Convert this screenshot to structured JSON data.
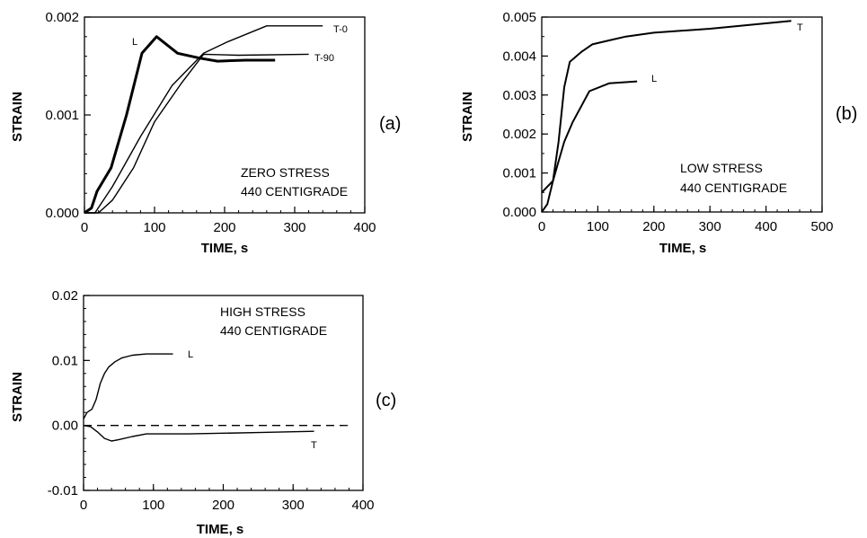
{
  "chart_data": [
    {
      "type": "line",
      "panel_label": "(a)",
      "xlabel": "TIME,  s",
      "ylabel": "STRAIN",
      "xlim": [
        0,
        400
      ],
      "ylim": [
        0,
        0.002
      ],
      "xticks": [
        "0",
        "100",
        "200",
        "300",
        "400"
      ],
      "yticks": [
        "0.000",
        "0.001",
        "0.002"
      ],
      "annotations": [
        "ZERO STRESS",
        "440 CENTIGRADE"
      ],
      "grid": false,
      "series": [
        {
          "name": "L",
          "style": "thick",
          "x": [
            0,
            10,
            18,
            38,
            60,
            82,
            103,
            133,
            165,
            190,
            230,
            272
          ],
          "y": [
            0,
            5e-05,
            0.00022,
            0.00046,
            0.001,
            0.00163,
            0.0018,
            0.00163,
            0.00158,
            0.00155,
            0.00156,
            0.00156
          ]
        },
        {
          "name": "T-0",
          "style": "thin",
          "x": [
            0,
            15,
            40,
            80,
            125,
            170,
            205,
            260,
            340
          ],
          "y": [
            0,
            0,
            0.00027,
            0.00078,
            0.0013,
            0.00163,
            0.00175,
            0.00191,
            0.00191
          ]
        },
        {
          "name": "T-90",
          "style": "thin",
          "x": [
            0,
            20,
            40,
            70,
            100,
            138,
            170,
            220,
            320
          ],
          "y": [
            0,
            0,
            0.00013,
            0.00046,
            0.00093,
            0.00132,
            0.00162,
            0.00161,
            0.00162
          ]
        }
      ]
    },
    {
      "type": "line",
      "panel_label": "(b)",
      "xlabel": "TIME,  s",
      "ylabel": "STRAIN",
      "xlim": [
        0,
        500
      ],
      "ylim": [
        0,
        0.005
      ],
      "xticks": [
        "0",
        "100",
        "200",
        "300",
        "400",
        "500"
      ],
      "yticks": [
        "0.000",
        "0.001",
        "0.002",
        "0.003",
        "0.004",
        "0.005"
      ],
      "annotations": [
        "LOW STRESS",
        "440 CENTIGRADE"
      ],
      "grid": false,
      "series": [
        {
          "name": "T",
          "x": [
            0,
            10,
            20,
            30,
            40,
            50,
            70,
            90,
            120,
            150,
            200,
            300,
            445
          ],
          "y": [
            0,
            0.0002,
            0.0008,
            0.0018,
            0.0032,
            0.00385,
            0.0041,
            0.0043,
            0.0044,
            0.0045,
            0.0046,
            0.0047,
            0.0049
          ]
        },
        {
          "name": "L",
          "x": [
            0,
            20,
            30,
            40,
            55,
            70,
            85,
            120,
            170
          ],
          "y": [
            0.0005,
            0.0008,
            0.0013,
            0.0018,
            0.0023,
            0.0027,
            0.0031,
            0.0033,
            0.00335
          ]
        }
      ]
    },
    {
      "type": "line",
      "panel_label": "(c)",
      "xlabel": "TIME,  s",
      "ylabel": "STRAIN",
      "xlim": [
        0,
        400
      ],
      "ylim": [
        -0.01,
        0.02
      ],
      "xticks": [
        "0",
        "100",
        "200",
        "300",
        "400"
      ],
      "yticks": [
        "-0.01",
        "0.00",
        "0.01",
        "0.02"
      ],
      "annotations": [
        "HIGH STRESS",
        "440 CENTIGRADE"
      ],
      "grid": false,
      "series": [
        {
          "name": "L",
          "x": [
            0,
            5,
            12,
            18,
            24,
            30,
            36,
            45,
            55,
            70,
            90,
            128
          ],
          "y": [
            0.001,
            0.002,
            0.0025,
            0.004,
            0.0065,
            0.008,
            0.009,
            0.0098,
            0.0104,
            0.0108,
            0.011,
            0.011
          ]
        },
        {
          "name": "T",
          "x": [
            0,
            10,
            20,
            30,
            40,
            50,
            70,
            90,
            150,
            250,
            330
          ],
          "y": [
            0,
            -0.0002,
            -0.001,
            -0.002,
            -0.0024,
            -0.0022,
            -0.0017,
            -0.0013,
            -0.0013,
            -0.0011,
            -0.0009
          ]
        },
        {
          "name": "",
          "style": "dashed",
          "x": [
            0,
            380
          ],
          "y": [
            0,
            0
          ]
        }
      ]
    }
  ]
}
